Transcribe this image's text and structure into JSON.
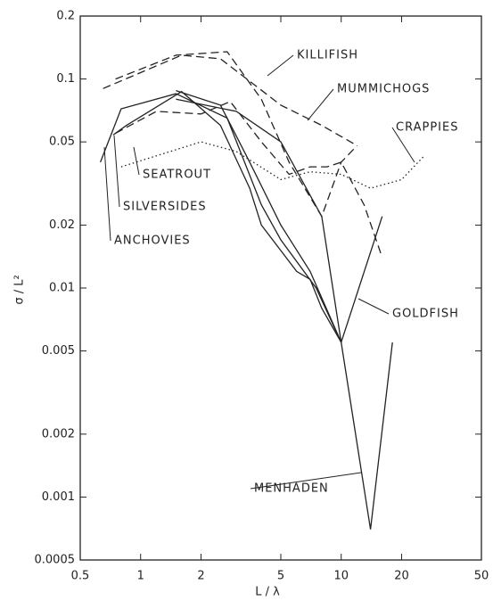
{
  "chart_data": {
    "type": "line",
    "x_label": "L / λ",
    "y_label": "σ / L²",
    "xscale": "log",
    "yscale": "log",
    "xlim": [
      0.5,
      50
    ],
    "xticks": [
      0.5,
      1,
      2,
      5,
      10,
      20,
      50
    ],
    "ylim": [
      0.0005,
      0.2
    ],
    "yticks": [
      0.0005,
      0.001,
      0.002,
      0.005,
      0.01,
      0.02,
      0.05,
      0.1,
      0.2
    ],
    "series": [
      {
        "name": "KILLIFISH",
        "color": "#222",
        "dash": "dashed",
        "x": [
          0.75,
          1.5,
          2.7,
          4,
          5.5,
          8,
          10,
          12
        ],
        "values": [
          0.1,
          0.13,
          0.135,
          0.08,
          0.04,
          0.022,
          0.04,
          0.048
        ]
      },
      {
        "name": "MUMMICHOGS",
        "color": "#222",
        "dash": "dashed",
        "x": [
          0.65,
          1.6,
          2.5,
          5,
          8,
          12
        ],
        "values": [
          0.09,
          0.13,
          0.125,
          0.075,
          0.06,
          0.048
        ]
      },
      {
        "name": "CRAPPIES",
        "color": "#222",
        "dash": "dotted",
        "x": [
          0.8,
          2,
          3,
          5,
          7,
          10,
          14,
          20,
          26
        ],
        "values": [
          0.038,
          0.05,
          0.045,
          0.033,
          0.036,
          0.035,
          0.03,
          0.033,
          0.043
        ]
      },
      {
        "name": "SEATROUT",
        "color": "#222",
        "dash": "dashed",
        "x": [
          0.75,
          1.2,
          2,
          2.8,
          4,
          5.5,
          7,
          8.5,
          10,
          13,
          16
        ],
        "values": [
          0.055,
          0.07,
          0.068,
          0.078,
          0.05,
          0.035,
          0.038,
          0.038,
          0.04,
          0.025,
          0.014
        ]
      },
      {
        "name": "SILVERSIDES",
        "color": "#222",
        "dash": "solid",
        "x": [
          0.73,
          0.85,
          1.6,
          2.5,
          3.5,
          4,
          6,
          7,
          8,
          10
        ],
        "values": [
          0.054,
          0.06,
          0.087,
          0.06,
          0.03,
          0.02,
          0.012,
          0.011,
          0.008,
          0.0055
        ]
      },
      {
        "name": "ANCHOVIES",
        "color": "#222",
        "dash": "solid",
        "x": [
          0.63,
          0.8,
          1.5,
          2.7,
          4,
          5,
          7.5,
          10
        ],
        "values": [
          0.04,
          0.072,
          0.085,
          0.065,
          0.025,
          0.017,
          0.01,
          0.0055
        ]
      },
      {
        "name": "GOLDFISH",
        "color": "#222",
        "dash": "solid",
        "x": [
          1.5,
          2.5,
          3.5,
          5,
          7,
          10,
          16
        ],
        "values": [
          0.088,
          0.075,
          0.04,
          0.02,
          0.012,
          0.0055,
          0.022
        ]
      },
      {
        "name": "MENHADEN",
        "color": "#222",
        "dash": "solid",
        "x": [
          1.5,
          3,
          5,
          8,
          10,
          14,
          18
        ],
        "values": [
          0.08,
          0.07,
          0.05,
          0.022,
          0.0055,
          0.0007,
          0.0055
        ]
      }
    ]
  }
}
